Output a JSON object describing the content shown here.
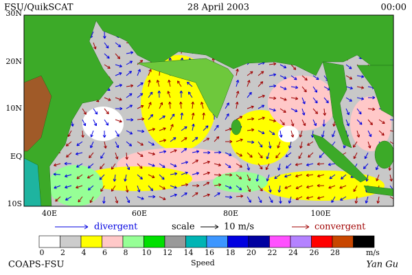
{
  "header": {
    "left": "FSU/QuikSCAT",
    "center": "28 April 2003",
    "right": "00:00"
  },
  "map": {
    "lat_labels": [
      "30N",
      "20N",
      "10N",
      "EQ",
      "10S"
    ],
    "lon_labels": [
      "40E",
      "60E",
      "80E",
      "100E"
    ]
  },
  "legend": {
    "divergent": "divergent",
    "scale": "scale",
    "scale_value": "10 m/s",
    "convergent": "convergent"
  },
  "colorbar": {
    "colors": [
      "#ffffff",
      "#cccccc",
      "#ffff00",
      "#ffc8c8",
      "#96ff96",
      "#00e000",
      "#999999",
      "#00b4b4",
      "#3c96ff",
      "#0000e0",
      "#0000a0",
      "#ff50ff",
      "#b482ff",
      "#ff0000",
      "#c84600",
      "#000000"
    ],
    "ticks": [
      0,
      2,
      4,
      6,
      8,
      10,
      12,
      14,
      16,
      18,
      20,
      22,
      24,
      26,
      28
    ],
    "unit": "m/s",
    "label": "Speed"
  },
  "footer": {
    "left": "COAPS-FSU",
    "right": "Yan Gu"
  }
}
